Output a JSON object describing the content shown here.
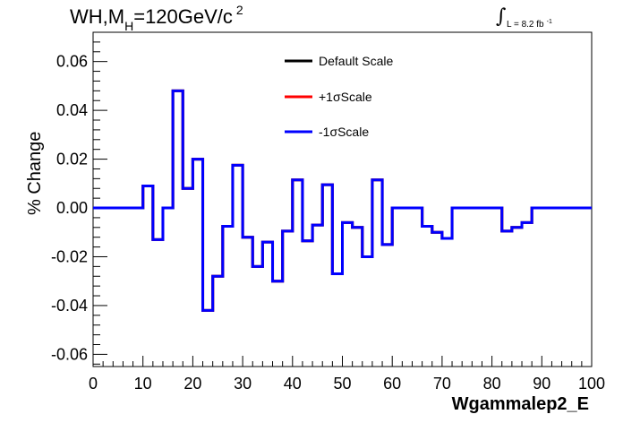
{
  "chart_data": {
    "type": "line",
    "step": true,
    "title_parts": {
      "main": "WH,M",
      "sub": "H",
      "rest": "=120GeV/c",
      "sup": "2"
    },
    "lumi": {
      "symbol": "∫",
      "text": "L = 8.2 fb",
      "sup": "-1"
    },
    "xlabel": "Wgammalep2_E",
    "ylabel": "% Change",
    "xlim": [
      0,
      100
    ],
    "ylim": [
      -0.065,
      0.072
    ],
    "xticks": [
      0,
      10,
      20,
      30,
      40,
      50,
      60,
      70,
      80,
      90,
      100
    ],
    "xtick_labels": [
      "0",
      "10",
      "20",
      "30",
      "40",
      "50",
      "60",
      "70",
      "80",
      "90",
      "100"
    ],
    "yticks": [
      -0.06,
      -0.04,
      -0.02,
      0.0,
      0.02,
      0.04,
      0.06
    ],
    "ytick_labels": [
      "-0.06",
      "-0.04",
      "-0.02",
      "0.00",
      "0.02",
      "0.04",
      "0.06"
    ],
    "bin_width": 2,
    "legend_position": "top-center",
    "series": [
      {
        "name": "Default Scale",
        "color": "#000000",
        "values": [
          0,
          0,
          0,
          0,
          0,
          0.009,
          -0.013,
          0,
          0.048,
          0.008,
          0.02,
          -0.042,
          -0.028,
          -0.0075,
          0.0175,
          -0.012,
          -0.024,
          -0.014,
          -0.03,
          -0.0095,
          0.0115,
          -0.0135,
          -0.007,
          0.0095,
          -0.027,
          -0.006,
          -0.008,
          -0.02,
          0.0115,
          -0.015,
          0,
          0,
          0,
          -0.0075,
          -0.01,
          -0.0125,
          0,
          0,
          0,
          0,
          0,
          -0.0095,
          -0.008,
          -0.006,
          0,
          0,
          0,
          0,
          0,
          0
        ]
      },
      {
        "name": "+1σScale",
        "color": "#ff0000",
        "values": [
          0,
          0,
          0,
          0,
          0,
          0.009,
          -0.013,
          0,
          0.048,
          0.008,
          0.02,
          -0.042,
          -0.028,
          -0.0075,
          0.0175,
          -0.012,
          -0.024,
          -0.014,
          -0.03,
          -0.0095,
          0.0115,
          -0.0135,
          -0.007,
          0.0095,
          -0.027,
          -0.006,
          -0.008,
          -0.02,
          0.0115,
          -0.015,
          0,
          0,
          0,
          -0.0075,
          -0.01,
          -0.0125,
          0,
          0,
          0,
          0,
          0,
          -0.0095,
          -0.008,
          -0.006,
          0,
          0,
          0,
          0,
          0,
          0
        ]
      },
      {
        "name": "-1σScale",
        "color": "#0000ff",
        "values": [
          0,
          0,
          0,
          0,
          0,
          0.009,
          -0.013,
          0,
          0.048,
          0.008,
          0.02,
          -0.042,
          -0.028,
          -0.0075,
          0.0175,
          -0.012,
          -0.024,
          -0.014,
          -0.03,
          -0.0095,
          0.0115,
          -0.0135,
          -0.007,
          0.0095,
          -0.027,
          -0.006,
          -0.008,
          -0.02,
          0.0115,
          -0.015,
          0,
          0,
          0,
          -0.0075,
          -0.01,
          -0.0125,
          0,
          0,
          0,
          0,
          0,
          -0.0095,
          -0.008,
          -0.006,
          0,
          0,
          0,
          0,
          0,
          0
        ]
      }
    ]
  }
}
